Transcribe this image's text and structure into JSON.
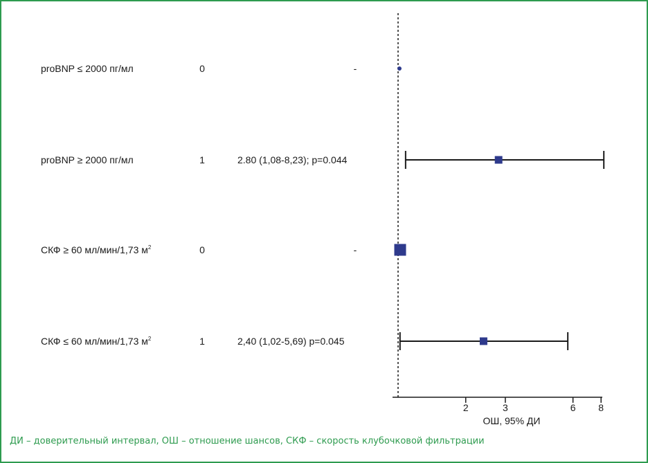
{
  "colors": {
    "border": "#2e9b4f",
    "marker": "#2e3a8c",
    "ink": "#1a1a1a",
    "footnote": "#2e9b4f"
  },
  "footnote": "ДИ – доверительный интервал, ОШ – отношение шансов, СКФ – скорость клубочковой фильтрации",
  "chart_data": {
    "type": "forest",
    "x_scale": "log",
    "reference_line": 1,
    "xlabel": "ОШ, 95% ДИ",
    "ticks": [
      {
        "value": 2,
        "label": "2"
      },
      {
        "value": 3,
        "label": "3"
      },
      {
        "value": 6,
        "label": "6"
      },
      {
        "value": 8,
        "label": "8"
      }
    ],
    "rows": [
      {
        "label": "proBNP ≤ 2000 пг/мл",
        "unit_sup": "",
        "ref": "0",
        "or_text": "-",
        "or": 1.0,
        "ci": null,
        "marker": "dot"
      },
      {
        "label": "proBNP ≥ 2000 пг/мл",
        "unit_sup": "",
        "ref": "1",
        "or_text": "2.80 (1,08-8,23); p=0.044",
        "or": 2.8,
        "ci": [
          1.08,
          8.23
        ],
        "marker": "square"
      },
      {
        "label": "СКФ ≥ 60 мл/мин/1,73 м",
        "unit_sup": "2",
        "ref": "0",
        "or_text": "-",
        "or": 1.0,
        "ci": null,
        "marker": "square-large"
      },
      {
        "label": "СКФ ≤ 60 мл/мин/1,73 м",
        "unit_sup": "2",
        "ref": "1",
        "or_text": "2,40 (1,02-5,69) p=0.045",
        "or": 2.4,
        "ci": [
          1.02,
          5.69
        ],
        "marker": "square"
      }
    ]
  }
}
